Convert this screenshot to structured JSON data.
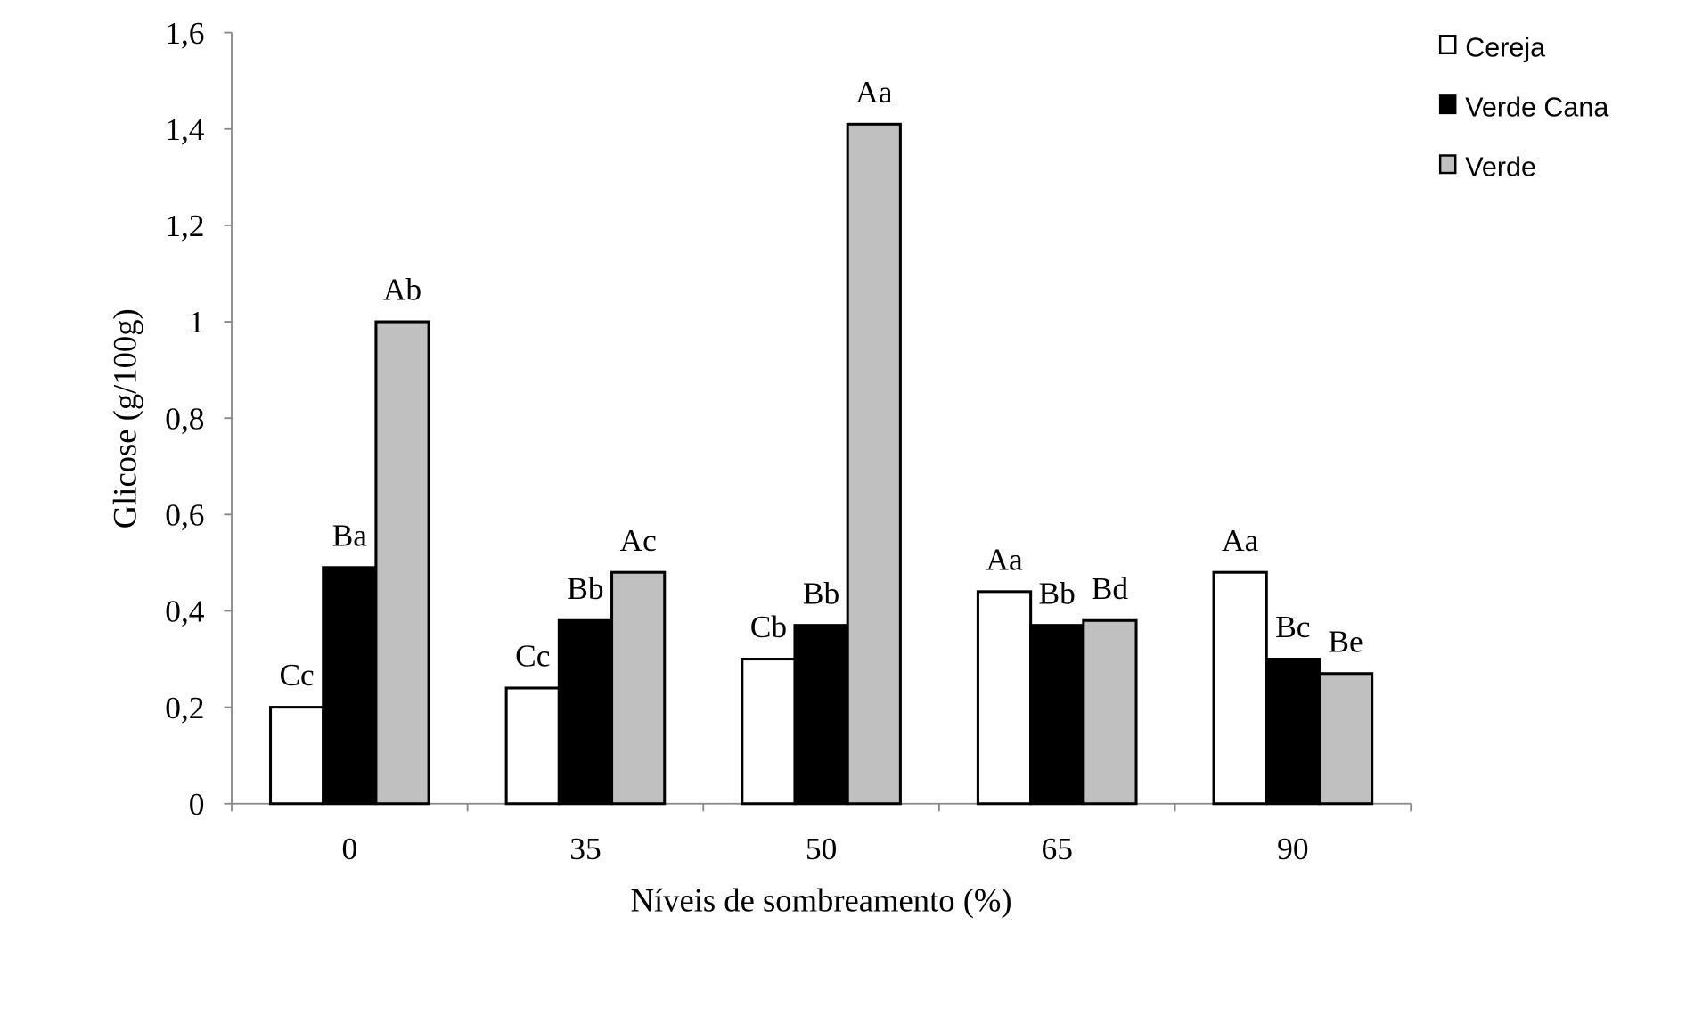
{
  "chart_data": {
    "type": "bar",
    "title": "",
    "xlabel": "Níveis de sombreamento (%)",
    "ylabel": "Glicose (g/100g)",
    "ylim": [
      0,
      1.6
    ],
    "yticks": [
      "0",
      "0,2",
      "0,4",
      "0,6",
      "0,8",
      "1",
      "1,2",
      "1,4",
      "1,6"
    ],
    "categories": [
      "0",
      "35",
      "50",
      "65",
      "90"
    ],
    "legend_position": "top-right",
    "grid": false,
    "series": [
      {
        "name": "Cereja",
        "color": "#ffffff",
        "values": [
          0.2,
          0.24,
          0.3,
          0.44,
          0.48
        ],
        "labels": [
          "Cc",
          "Cc",
          "Cb",
          "Aa",
          "Aa"
        ]
      },
      {
        "name": "Verde Cana",
        "color": "#000000",
        "values": [
          0.49,
          0.38,
          0.37,
          0.37,
          0.3
        ],
        "labels": [
          "Ba",
          "Bb",
          "Bb",
          "Bb",
          "Bc"
        ]
      },
      {
        "name": "Verde",
        "color": "#c0c0c0",
        "values": [
          1.0,
          0.48,
          1.41,
          0.38,
          0.27
        ],
        "labels": [
          "Ab",
          "Ac",
          "Aa",
          "Bd",
          "Be"
        ]
      }
    ]
  }
}
